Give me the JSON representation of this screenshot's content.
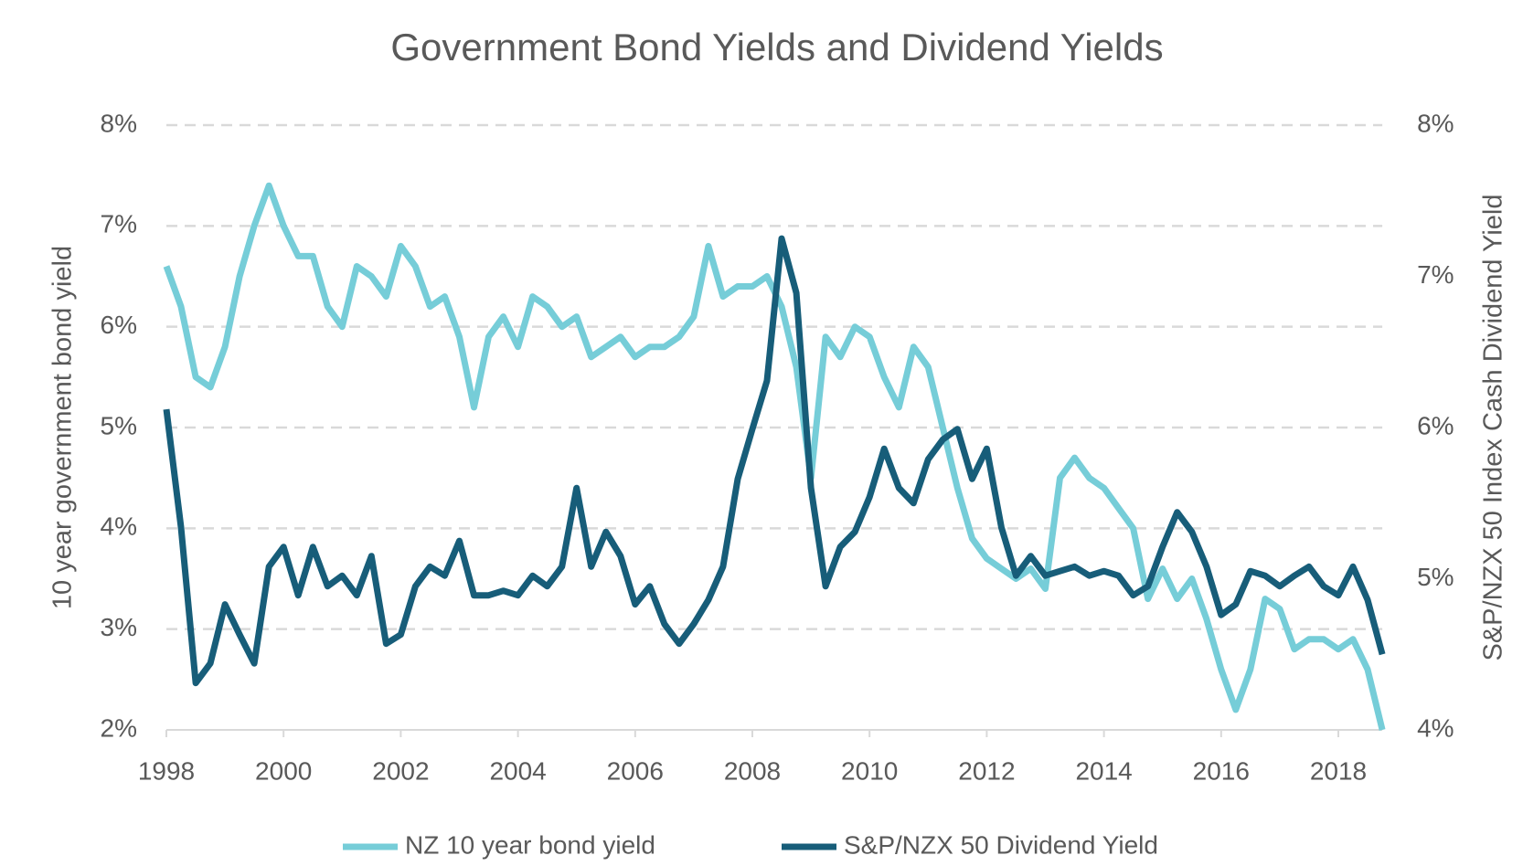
{
  "chart_data": {
    "type": "line",
    "title": "Government Bond Yields and Dividend Yields",
    "y_label": "10 year government bond yield",
    "y2_label": "S&P/NZX 50 Index Cash Dividend Yield",
    "x": [
      1998,
      1998.25,
      1998.5,
      1998.75,
      1999,
      1999.25,
      1999.5,
      1999.75,
      2000,
      2000.25,
      2000.5,
      2000.75,
      2001,
      2001.25,
      2001.5,
      2001.75,
      2002,
      2002.25,
      2002.5,
      2002.75,
      2003,
      2003.25,
      2003.5,
      2003.75,
      2004,
      2004.25,
      2004.5,
      2004.75,
      2005,
      2005.25,
      2005.5,
      2005.75,
      2006,
      2006.25,
      2006.5,
      2006.75,
      2007,
      2007.25,
      2007.5,
      2007.75,
      2008,
      2008.25,
      2008.5,
      2008.75,
      2009,
      2009.25,
      2009.5,
      2009.75,
      2010,
      2010.25,
      2010.5,
      2010.75,
      2011,
      2011.25,
      2011.5,
      2011.75,
      2012,
      2012.25,
      2012.5,
      2012.75,
      2013,
      2013.25,
      2013.5,
      2013.75,
      2014,
      2014.25,
      2014.5,
      2014.75,
      2015,
      2015.25,
      2015.5,
      2015.75,
      2016,
      2016.25,
      2016.5,
      2016.75,
      2017,
      2017.25,
      2017.5,
      2017.75,
      2018,
      2018.25,
      2018.5,
      2018.75
    ],
    "series": [
      {
        "name": "NZ 10 year bond yield",
        "color": "#76cdd8",
        "axis": "y",
        "values": [
          6.6,
          6.2,
          5.5,
          5.4,
          5.8,
          6.5,
          7.0,
          7.4,
          7.0,
          6.7,
          6.7,
          6.2,
          6.0,
          6.6,
          6.5,
          6.3,
          6.8,
          6.6,
          6.2,
          6.3,
          5.9,
          5.2,
          5.9,
          6.1,
          5.8,
          6.3,
          6.2,
          6.0,
          6.1,
          5.7,
          5.8,
          5.9,
          5.7,
          5.8,
          5.8,
          5.9,
          6.1,
          6.8,
          6.3,
          6.4,
          6.4,
          6.5,
          6.2,
          5.6,
          4.5,
          5.9,
          5.7,
          6.0,
          5.9,
          5.5,
          5.2,
          5.8,
          5.6,
          5.0,
          4.4,
          3.9,
          3.7,
          3.6,
          3.5,
          3.6,
          3.4,
          4.5,
          4.7,
          4.5,
          4.4,
          4.2,
          4.0,
          3.3,
          3.6,
          3.3,
          3.5,
          3.1,
          2.6,
          2.2,
          2.6,
          3.3,
          3.2,
          2.8,
          2.9,
          2.9,
          2.8,
          2.9,
          2.6,
          2.0
        ]
      },
      {
        "name": "S&P/NZX 50 Dividend Yield",
        "color": "#175d79",
        "axis": "y2",
        "values": [
          6.12,
          5.34,
          4.31,
          4.44,
          4.83,
          4.63,
          4.44,
          5.08,
          5.21,
          4.89,
          5.21,
          4.95,
          5.02,
          4.89,
          5.15,
          4.57,
          4.63,
          4.95,
          5.08,
          5.02,
          5.25,
          4.89,
          4.89,
          4.92,
          4.89,
          5.02,
          4.95,
          5.08,
          5.6,
          5.08,
          5.31,
          5.15,
          4.83,
          4.95,
          4.7,
          4.57,
          4.7,
          4.86,
          5.08,
          5.66,
          5.99,
          6.31,
          7.25,
          6.89,
          5.6,
          4.95,
          5.21,
          5.31,
          5.54,
          5.86,
          5.6,
          5.5,
          5.79,
          5.92,
          5.99,
          5.66,
          5.86,
          5.34,
          5.02,
          5.15,
          5.02,
          5.05,
          5.08,
          5.02,
          5.05,
          5.02,
          4.89,
          4.95,
          5.21,
          5.44,
          5.31,
          5.08,
          4.76,
          4.83,
          5.05,
          5.02,
          4.95,
          5.02,
          5.08,
          4.95,
          4.89,
          5.08,
          4.86,
          4.5
        ]
      }
    ],
    "xlim": [
      1998,
      2018.75
    ],
    "xticks": [
      1998,
      2000,
      2002,
      2004,
      2006,
      2008,
      2010,
      2012,
      2014,
      2016,
      2018
    ],
    "ylim": [
      2,
      8
    ],
    "yticks": [
      {
        "value": 2,
        "label": "2%"
      },
      {
        "value": 3,
        "label": "3%"
      },
      {
        "value": 4,
        "label": "4%"
      },
      {
        "value": 5,
        "label": "5%"
      },
      {
        "value": 6,
        "label": "6%"
      },
      {
        "value": 7,
        "label": "7%"
      },
      {
        "value": 8,
        "label": "8%"
      }
    ],
    "y2lim": [
      4,
      8
    ],
    "y2ticks": [
      {
        "value": 4,
        "label": "4%"
      },
      {
        "value": 5,
        "label": "5%"
      },
      {
        "value": 6,
        "label": "6%"
      },
      {
        "value": 7,
        "label": "7%"
      },
      {
        "value": 8,
        "label": "8%"
      }
    ],
    "grid": true,
    "legend": "bottom"
  }
}
